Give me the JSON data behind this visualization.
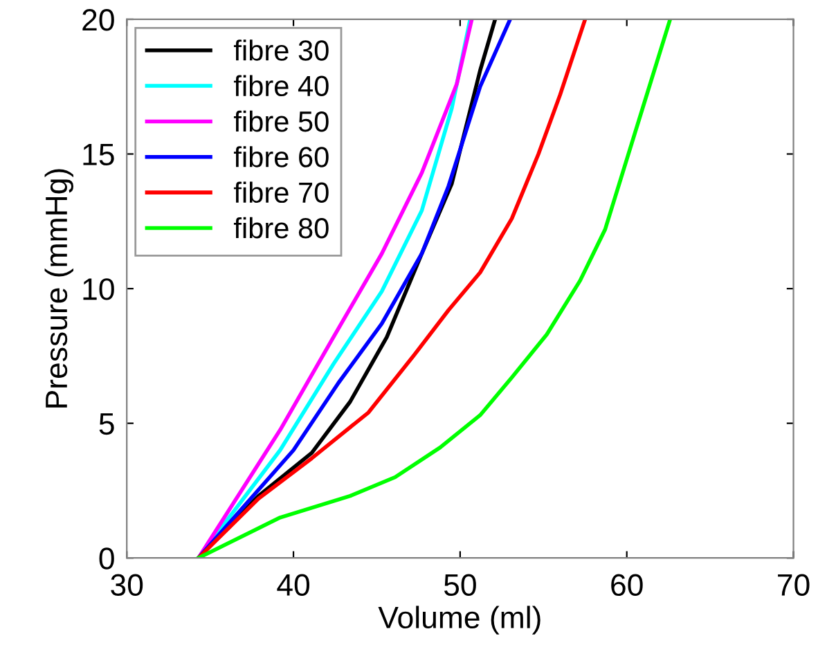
{
  "chart_data": {
    "type": "line",
    "xlabel": "Volume (ml)",
    "ylabel": "Pressure (mmHg)",
    "xlim": [
      30,
      70
    ],
    "xticks": [
      30,
      40,
      50,
      60,
      70
    ],
    "ylim": [
      0,
      20
    ],
    "yticks": [
      0,
      5,
      10,
      15,
      20
    ],
    "grid": false,
    "legend": "top left",
    "marker": "none",
    "line_style": "solid",
    "series": [
      {
        "name": "fibre 30",
        "color": "#000000",
        "x": [
          34.3,
          37.9,
          41.1,
          43.4,
          45.6,
          47.7,
          49.5,
          51.2,
          52.1
        ],
        "values": [
          0,
          2.3,
          3.9,
          5.8,
          8.2,
          11.3,
          13.9,
          18.1,
          20
        ]
      },
      {
        "name": "fibre 40",
        "color": "#00ffff",
        "x": [
          34.3,
          39.2,
          42.4,
          45.3,
          47.7,
          49.5,
          50.6
        ],
        "values": [
          0,
          4.0,
          7.2,
          9.9,
          12.9,
          16.7,
          20
        ]
      },
      {
        "name": "fibre 50",
        "color": "#ff00ff",
        "x": [
          34.3,
          39.2,
          42.4,
          45.3,
          47.7,
          49.8,
          50.7
        ],
        "values": [
          0,
          4.75,
          8.2,
          11.3,
          14.3,
          17.6,
          20
        ]
      },
      {
        "name": "fibre 60",
        "color": "#0000ff",
        "x": [
          34.3,
          40.0,
          42.7,
          45.3,
          47.7,
          49.3,
          51.2,
          53.0
        ],
        "values": [
          0,
          4.0,
          6.5,
          8.7,
          11.3,
          13.8,
          17.5,
          20
        ]
      },
      {
        "name": "fibre 70",
        "color": "#ff0000",
        "x": [
          34.3,
          37.9,
          41.1,
          44.5,
          47.2,
          49.3,
          51.2,
          53.1,
          54.7,
          56.0,
          57.5
        ],
        "values": [
          0,
          2.2,
          3.7,
          5.4,
          7.5,
          9.2,
          10.6,
          12.6,
          15.0,
          17.2,
          20
        ]
      },
      {
        "name": "fibre 80",
        "color": "#00ff00",
        "x": [
          34.3,
          39.2,
          43.4,
          46.1,
          48.8,
          51.2,
          53.1,
          55.2,
          57.2,
          58.7,
          60.0,
          61.1,
          62.6
        ],
        "values": [
          0,
          1.5,
          2.3,
          3.0,
          4.1,
          5.3,
          6.7,
          8.3,
          10.3,
          12.2,
          14.8,
          17.0,
          20
        ]
      }
    ]
  }
}
